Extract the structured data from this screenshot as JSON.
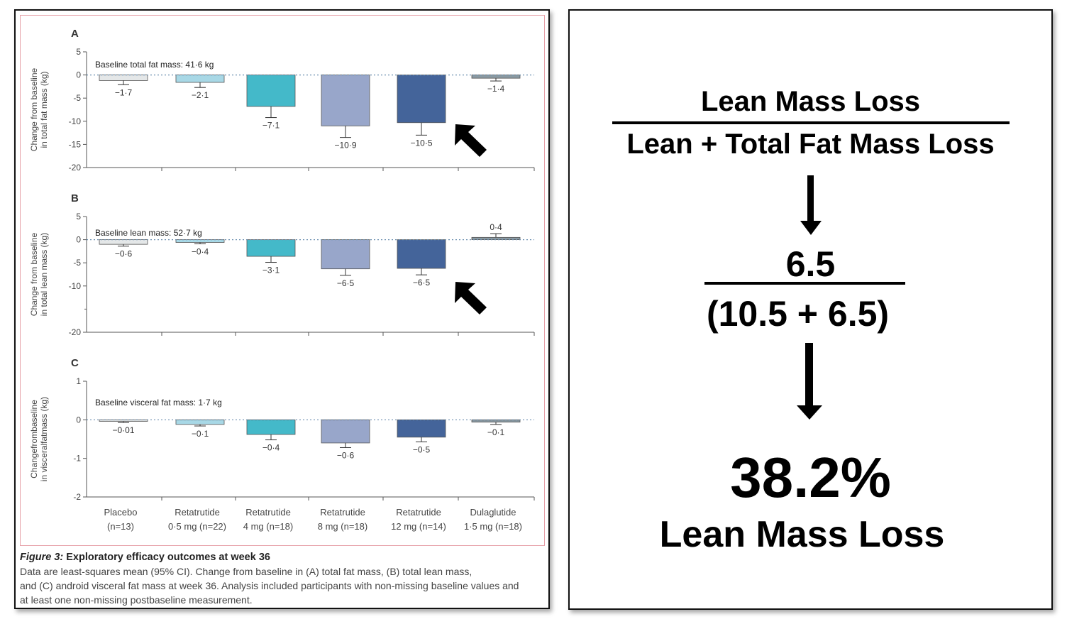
{
  "chart_data": [
    {
      "type": "bar",
      "panel_label": "A",
      "ylabel": "Change from baseline in total fat mass (kg)",
      "baseline_note": "Baseline total fat mass: 41·6 kg",
      "ylim": [
        -20,
        5
      ],
      "yticks": [
        "5",
        "0",
        "-5",
        "-10",
        "-15",
        "-20"
      ],
      "yticks_values": [
        5,
        0,
        -5,
        -10,
        -15,
        -20
      ],
      "categories": [
        "Placebo (n=13)",
        "Retatrutide 0·5 mg (n=22)",
        "Retatrutide 4 mg (n=18)",
        "Retatrutide 8 mg (n=18)",
        "Retatrutide 12 mg (n=14)",
        "Dulaglutide 1·5 mg (n=18)"
      ],
      "values": [
        -1.7,
        -2.1,
        -7.1,
        -10.9,
        -10.5,
        -1.4
      ],
      "shown_bar_values": [
        -1.2,
        -1.6,
        -6.8,
        -11.0,
        -10.3,
        -0.7
      ],
      "ci_lower": [
        -2.1,
        -2.7,
        -9.2,
        -13.5,
        -13.0,
        -1.3
      ],
      "data_labels": [
        "−1·7",
        "−2·1",
        "−7·1",
        "−10·9",
        "−10·5",
        "−1·4"
      ],
      "label_positions": [
        "below",
        "below",
        "below",
        "below",
        "below",
        "below"
      ],
      "arrow_on_category": 4
    },
    {
      "type": "bar",
      "panel_label": "B",
      "ylabel": "Change from baseline in total lean mass (kg)",
      "baseline_note": "Baseline lean mass: 52·7 kg",
      "ylim": [
        -20,
        5
      ],
      "yticks": [
        "5",
        "0",
        "-5",
        "-10",
        "-20"
      ],
      "yticks_values": [
        5,
        0,
        -5,
        -10,
        -20
      ],
      "categories": [
        "Placebo (n=13)",
        "Retatrutide 0·5 mg (n=22)",
        "Retatrutide 4 mg (n=18)",
        "Retatrutide 8 mg (n=18)",
        "Retatrutide 12 mg (n=14)",
        "Dulaglutide 1·5 mg (n=18)"
      ],
      "values": [
        -0.6,
        -0.4,
        -3.1,
        -6.5,
        -6.5,
        0.4
      ],
      "shown_bar_values": [
        -1.0,
        -0.6,
        -3.6,
        -6.3,
        -6.2,
        0.5
      ],
      "ci_lower": [
        -1.4,
        -0.9,
        -4.9,
        -7.7,
        -7.6,
        1.3
      ],
      "data_labels": [
        "−0·6",
        "−0·4",
        "−3·1",
        "−6·5",
        "−6·5",
        "0·4"
      ],
      "label_positions": [
        "below",
        "below",
        "below",
        "below",
        "below",
        "above"
      ],
      "arrow_on_category": 4
    },
    {
      "type": "bar",
      "panel_label": "C",
      "ylabel": "Changefrombaseline in visceralfatmass (kg)",
      "baseline_note": "Baseline visceral fat mass: 1·7 kg",
      "ylim": [
        -2,
        1
      ],
      "yticks": [
        "1",
        "0",
        "-1",
        "-2"
      ],
      "yticks_values": [
        1,
        0,
        -1,
        -2
      ],
      "categories": [
        "Placebo (n=13)",
        "Retatrutide 0·5 mg (n=22)",
        "Retatrutide 4 mg (n=18)",
        "Retatrutide 8 mg (n=18)",
        "Retatrutide 12 mg (n=14)",
        "Dulaglutide 1·5 mg (n=18)"
      ],
      "values": [
        -0.01,
        -0.1,
        -0.4,
        -0.6,
        -0.5,
        -0.1
      ],
      "shown_bar_values": [
        -0.04,
        -0.12,
        -0.38,
        -0.6,
        -0.45,
        -0.06
      ],
      "ci_lower": [
        -0.07,
        -0.16,
        -0.52,
        -0.72,
        -0.57,
        -0.12
      ],
      "data_labels": [
        "−0·01",
        "−0·1",
        "−0·4",
        "−0·6",
        "−0·5",
        "−0·1"
      ],
      "label_positions": [
        "below",
        "below",
        "below",
        "below",
        "below",
        "below"
      ],
      "arrow_on_category": null
    }
  ],
  "x_axis": {
    "labels": [
      [
        "Placebo",
        "(n=13)"
      ],
      [
        "Retatrutide",
        "0·5 mg (n=22)"
      ],
      [
        "Retatrutide",
        "4 mg (n=18)"
      ],
      [
        "Retatrutide",
        "8 mg (n=18)"
      ],
      [
        "Retatrutide",
        "12 mg (n=14)"
      ],
      [
        "Dulaglutide",
        "1·5 mg (n=18)"
      ]
    ]
  },
  "colors": {
    "bars": [
      "#e4e7e8",
      "#a8d8e6",
      "#44b9c9",
      "#98a6ca",
      "#44649a",
      "#8a9aa3"
    ],
    "axis": "#555555",
    "zero_line": "#6b8fb0",
    "arrow": "#000000"
  },
  "caption": {
    "title_italic": "Figure 3:",
    "title_rest": " Exploratory efficacy outcomes at week 36",
    "lines": [
      "Data are least-squares mean (95% CI). Change from baseline in (A) total fat mass, (B) total lean mass,",
      "and (C) android visceral fat mass at week 36. Analysis included participants with non-missing baseline values and",
      "at least one non-missing postbaseline measurement."
    ]
  },
  "formula": {
    "numerator": "Lean Mass Loss",
    "denominator": "Lean + Total Fat Mass Loss",
    "value_numerator": "6.5",
    "value_denominator": "(10.5 + 6.5)",
    "result": "38.2%",
    "result_label": "Lean Mass Loss"
  }
}
